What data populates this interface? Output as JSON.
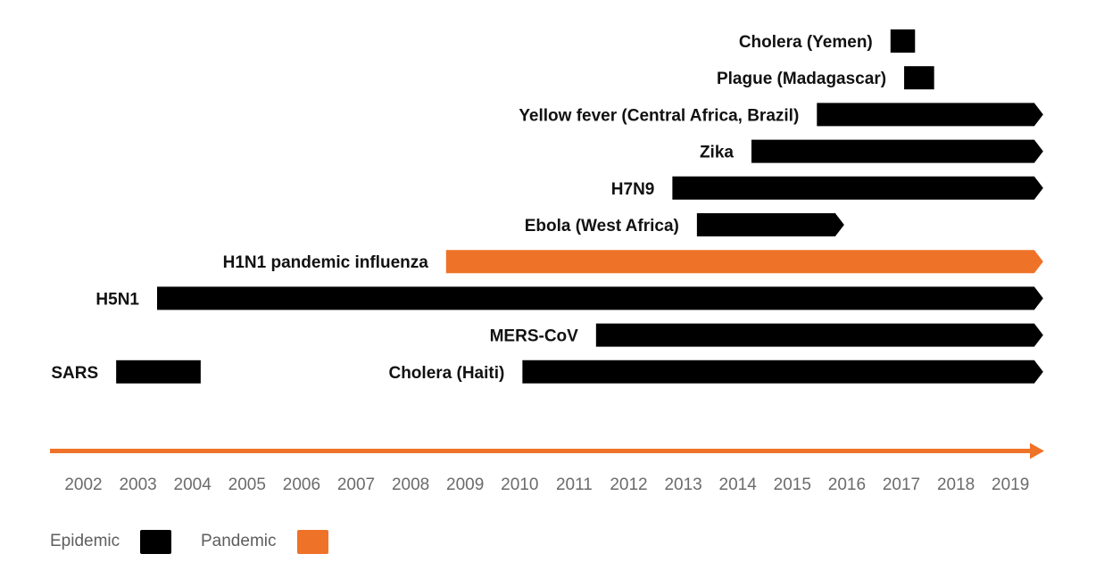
{
  "chart_data": {
    "type": "timeline",
    "title": "",
    "xlabel": "",
    "ylabel": "",
    "x_ticks": [
      "2002",
      "2003",
      "2004",
      "2005",
      "2006",
      "2007",
      "2008",
      "2009",
      "2010",
      "2011",
      "2012",
      "2013",
      "2014",
      "2015",
      "2016",
      "2017",
      "2018",
      "2019"
    ],
    "xlim": [
      2002,
      2019.6
    ],
    "grid": false,
    "colors": {
      "epidemic": "#000000",
      "pandemic": "#ef7229",
      "axis": "#ef7229"
    },
    "events": [
      {
        "label": "Cholera (Yemen)",
        "category": "epidemic",
        "start": 2016.8,
        "end": 2017.25,
        "ongoing": false
      },
      {
        "label": "Plague (Madagascar)",
        "category": "epidemic",
        "start": 2017.05,
        "end": 2017.6,
        "ongoing": false
      },
      {
        "label": "Yellow fever (Central Africa, Brazil)",
        "category": "epidemic",
        "start": 2015.45,
        "end": 2019.6,
        "ongoing": true
      },
      {
        "label": "Zika",
        "category": "epidemic",
        "start": 2014.25,
        "end": 2019.6,
        "ongoing": true
      },
      {
        "label": "H7N9",
        "category": "epidemic",
        "start": 2012.8,
        "end": 2019.6,
        "ongoing": true
      },
      {
        "label": "Ebola (West Africa)",
        "category": "epidemic",
        "start": 2013.25,
        "end": 2015.95,
        "ongoing": true
      },
      {
        "label": "H1N1 pandemic influenza",
        "category": "pandemic",
        "start": 2008.65,
        "end": 2019.6,
        "ongoing": true
      },
      {
        "label": "H5N1",
        "category": "epidemic",
        "start": 2003.35,
        "end": 2019.6,
        "ongoing": true
      },
      {
        "label": "MERS-CoV",
        "category": "epidemic",
        "start": 2011.4,
        "end": 2019.6,
        "ongoing": true
      },
      {
        "label": "SARS",
        "category": "epidemic",
        "start": 2002.6,
        "end": 2004.15,
        "ongoing": false
      },
      {
        "label": "Cholera (Haiti)",
        "category": "epidemic",
        "start": 2010.05,
        "end": 2019.6,
        "ongoing": true
      }
    ],
    "legend": [
      {
        "label": "Epidemic",
        "category": "epidemic"
      },
      {
        "label": "Pandemic",
        "category": "pandemic"
      }
    ],
    "legend_position": "bottom-left"
  }
}
